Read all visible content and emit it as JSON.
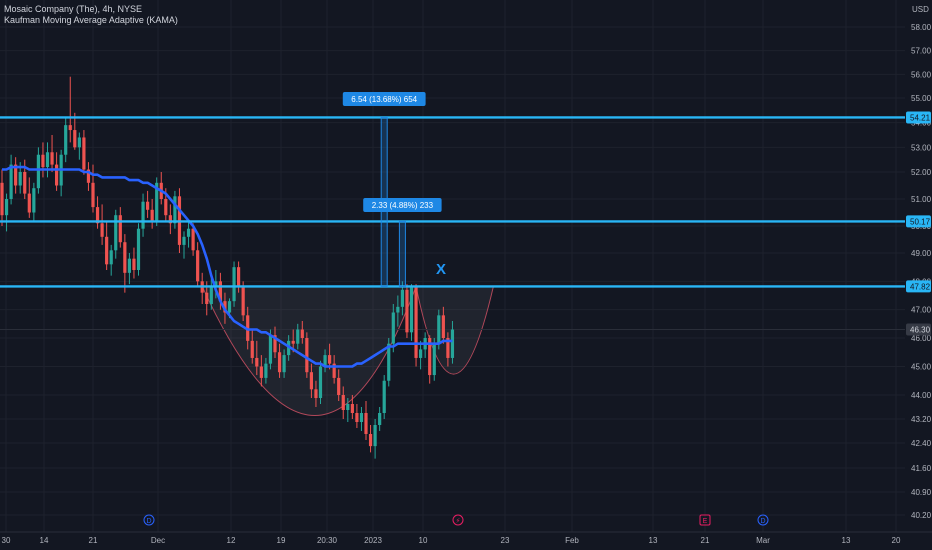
{
  "header": {
    "symbol_line": "Mosaic Company (The), 4h, NYSE",
    "indicator_line": "Kaufman Moving Average Adaptive (KAMA)"
  },
  "currency": "USD",
  "colors": {
    "background": "#131722",
    "up": "#26a69a",
    "down": "#ef5350",
    "kama": "#2962ff",
    "level_line": "#29b6f6",
    "measure": "#1e88e5"
  },
  "chart_data": {
    "type": "candlestick",
    "title": "Mosaic Company (The), 4h, NYSE",
    "ylim": [
      40.0,
      58.5
    ],
    "y_ticks": [
      "58.00",
      "57.00",
      "56.00",
      "55.00",
      "54.00",
      "53.00",
      "52.00",
      "51.00",
      "50.00",
      "49.00",
      "48.00",
      "47.00",
      "46.00",
      "45.00",
      "44.00",
      "43.20",
      "42.40",
      "41.60",
      "40.90",
      "40.20"
    ],
    "x_ticks": [
      "30",
      "14",
      "21",
      "Dec",
      "12",
      "19",
      "20:30",
      "2023",
      "10",
      "23",
      "Feb",
      "13",
      "21",
      "Mar",
      "13",
      "20"
    ],
    "current_price": "46.30",
    "levels": [
      {
        "value": 54.21,
        "label": "54.21"
      },
      {
        "value": 50.17,
        "label": "50.17"
      },
      {
        "value": 47.82,
        "label": "47.82"
      }
    ],
    "measurements": [
      {
        "label": "6.54 (13.68%) 654"
      },
      {
        "label": "2.33 (4.88%) 233"
      }
    ],
    "annotations": {
      "target_mark": "X",
      "event_markers": [
        "D",
        "⚡",
        "E",
        "D"
      ]
    },
    "candles": [
      [
        51.6,
        52.1,
        50.0,
        50.4
      ],
      [
        50.4,
        51.2,
        49.8,
        51.0
      ],
      [
        51.0,
        52.7,
        50.8,
        52.3
      ],
      [
        52.3,
        52.6,
        51.2,
        51.5
      ],
      [
        51.5,
        52.4,
        51.2,
        52.0
      ],
      [
        52.0,
        52.5,
        51.0,
        51.2
      ],
      [
        51.2,
        51.8,
        50.3,
        50.5
      ],
      [
        50.5,
        51.6,
        50.2,
        51.4
      ],
      [
        51.4,
        53.0,
        51.2,
        52.7
      ],
      [
        52.7,
        53.2,
        51.8,
        52.2
      ],
      [
        52.2,
        53.2,
        51.8,
        52.8
      ],
      [
        52.8,
        53.5,
        52.0,
        52.3
      ],
      [
        52.3,
        52.8,
        51.3,
        51.5
      ],
      [
        51.5,
        52.9,
        51.1,
        52.7
      ],
      [
        52.7,
        54.2,
        52.4,
        53.9
      ],
      [
        53.9,
        55.9,
        53.2,
        53.7
      ],
      [
        53.7,
        54.4,
        52.9,
        53.0
      ],
      [
        53.0,
        53.6,
        52.5,
        53.4
      ],
      [
        53.4,
        53.7,
        51.9,
        52.1
      ],
      [
        52.1,
        52.4,
        51.3,
        51.6
      ],
      [
        51.6,
        52.3,
        50.5,
        50.7
      ],
      [
        50.7,
        51.1,
        49.9,
        50.1
      ],
      [
        50.1,
        50.8,
        49.3,
        49.6
      ],
      [
        49.6,
        50.2,
        48.4,
        48.6
      ],
      [
        48.6,
        49.3,
        48.2,
        49.1
      ],
      [
        49.1,
        50.6,
        48.8,
        50.4
      ],
      [
        50.4,
        50.7,
        49.2,
        49.4
      ],
      [
        49.4,
        49.7,
        47.6,
        48.3
      ],
      [
        48.3,
        49.0,
        47.9,
        48.8
      ],
      [
        48.8,
        49.2,
        48.1,
        48.4
      ],
      [
        48.4,
        50.1,
        48.2,
        49.9
      ],
      [
        49.9,
        51.2,
        49.6,
        50.9
      ],
      [
        50.9,
        51.3,
        50.3,
        50.6
      ],
      [
        50.6,
        51.0,
        49.9,
        50.2
      ],
      [
        50.2,
        51.8,
        50.0,
        51.6
      ],
      [
        51.6,
        52.0,
        50.8,
        51.0
      ],
      [
        51.0,
        51.4,
        50.2,
        50.4
      ],
      [
        50.4,
        50.8,
        49.7,
        50.1
      ],
      [
        50.1,
        51.3,
        49.9,
        51.1
      ],
      [
        51.1,
        51.4,
        49.0,
        49.3
      ],
      [
        49.3,
        49.8,
        48.8,
        49.6
      ],
      [
        49.6,
        50.2,
        49.2,
        49.9
      ],
      [
        49.9,
        50.1,
        48.9,
        49.1
      ],
      [
        49.1,
        49.4,
        47.8,
        48.0
      ],
      [
        48.0,
        48.3,
        47.2,
        47.6
      ],
      [
        47.6,
        48.0,
        46.8,
        47.2
      ],
      [
        47.2,
        48.1,
        47.0,
        47.8
      ],
      [
        47.8,
        48.4,
        47.4,
        48.0
      ],
      [
        48.0,
        48.3,
        47.0,
        47.3
      ],
      [
        47.3,
        47.6,
        46.5,
        46.9
      ],
      [
        46.9,
        47.4,
        46.7,
        47.3
      ],
      [
        47.3,
        48.7,
        47.1,
        48.5
      ],
      [
        48.5,
        48.7,
        47.6,
        47.8
      ],
      [
        47.8,
        48.0,
        46.6,
        46.8
      ],
      [
        46.8,
        47.1,
        45.6,
        45.9
      ],
      [
        45.9,
        46.3,
        45.1,
        45.3
      ],
      [
        45.3,
        45.9,
        44.7,
        45.0
      ],
      [
        45.0,
        45.4,
        44.3,
        44.6
      ],
      [
        44.6,
        45.3,
        44.4,
        45.1
      ],
      [
        45.1,
        46.3,
        44.9,
        46.1
      ],
      [
        46.1,
        46.4,
        45.3,
        45.5
      ],
      [
        45.5,
        45.8,
        44.6,
        44.8
      ],
      [
        44.8,
        45.6,
        44.6,
        45.4
      ],
      [
        45.4,
        46.1,
        45.2,
        45.9
      ],
      [
        45.9,
        46.3,
        45.5,
        45.8
      ],
      [
        45.8,
        46.5,
        45.6,
        46.3
      ],
      [
        46.3,
        46.6,
        45.8,
        46.0
      ],
      [
        46.0,
        46.2,
        44.6,
        44.8
      ],
      [
        44.8,
        45.1,
        43.9,
        44.2
      ],
      [
        44.2,
        44.5,
        43.6,
        43.9
      ],
      [
        43.9,
        45.2,
        43.7,
        45.0
      ],
      [
        45.0,
        45.6,
        44.8,
        45.4
      ],
      [
        45.4,
        45.8,
        44.9,
        45.1
      ],
      [
        45.1,
        45.4,
        44.4,
        44.6
      ],
      [
        44.6,
        44.9,
        43.8,
        44.0
      ],
      [
        44.0,
        44.3,
        43.2,
        43.5
      ],
      [
        43.5,
        43.9,
        43.1,
        43.7
      ],
      [
        43.7,
        44.0,
        43.2,
        43.4
      ],
      [
        43.4,
        43.7,
        42.9,
        43.1
      ],
      [
        43.1,
        43.6,
        42.8,
        43.4
      ],
      [
        43.4,
        43.8,
        42.5,
        42.7
      ],
      [
        42.7,
        43.0,
        42.1,
        42.3
      ],
      [
        42.3,
        43.2,
        41.9,
        43.0
      ],
      [
        43.0,
        43.6,
        42.8,
        43.4
      ],
      [
        43.4,
        44.7,
        43.2,
        44.5
      ],
      [
        44.5,
        46.0,
        44.3,
        45.8
      ],
      [
        45.8,
        47.2,
        45.5,
        46.9
      ],
      [
        46.9,
        47.5,
        46.4,
        47.1
      ],
      [
        47.1,
        48.0,
        46.8,
        47.7
      ],
      [
        47.7,
        47.9,
        46.0,
        46.2
      ],
      [
        46.2,
        47.9,
        45.9,
        47.8
      ],
      [
        47.8,
        47.9,
        45.0,
        45.3
      ],
      [
        45.3,
        45.9,
        44.9,
        45.6
      ],
      [
        45.6,
        46.2,
        45.3,
        46.0
      ],
      [
        46.0,
        46.1,
        44.4,
        44.7
      ],
      [
        44.7,
        46.0,
        44.5,
        45.8
      ],
      [
        45.8,
        47.0,
        45.6,
        46.8
      ],
      [
        46.8,
        47.1,
        45.8,
        46.0
      ],
      [
        46.0,
        46.2,
        45.0,
        45.3
      ],
      [
        45.3,
        46.6,
        45.1,
        46.3
      ]
    ],
    "kama": [
      52.1,
      52.1,
      52.2,
      52.2,
      52.2,
      52.2,
      52.1,
      52.1,
      52.1,
      52.1,
      52.1,
      52.1,
      52.1,
      52.1,
      52.1,
      52.1,
      52.1,
      52.1,
      52.0,
      52.0,
      51.9,
      51.9,
      51.8,
      51.8,
      51.8,
      51.8,
      51.8,
      51.8,
      51.7,
      51.7,
      51.7,
      51.6,
      51.6,
      51.5,
      51.4,
      51.3,
      51.2,
      51.0,
      50.8,
      50.6,
      50.4,
      50.2,
      50.0,
      49.7,
      49.3,
      48.8,
      48.2,
      47.7,
      47.3,
      47.0,
      46.8,
      46.6,
      46.5,
      46.4,
      46.3,
      46.3,
      46.3,
      46.2,
      46.2,
      46.1,
      46.0,
      45.9,
      45.8,
      45.7,
      45.6,
      45.5,
      45.4,
      45.3,
      45.2,
      45.1,
      45.1,
      45.0,
      45.0,
      45.0,
      45.0,
      45.0,
      45.0,
      45.0,
      45.1,
      45.1,
      45.2,
      45.3,
      45.4,
      45.5,
      45.6,
      45.7,
      45.7,
      45.8,
      45.8,
      45.8,
      45.8,
      45.8,
      45.8,
      45.8,
      45.8,
      45.8,
      45.8,
      45.9,
      45.9,
      45.9
    ]
  }
}
